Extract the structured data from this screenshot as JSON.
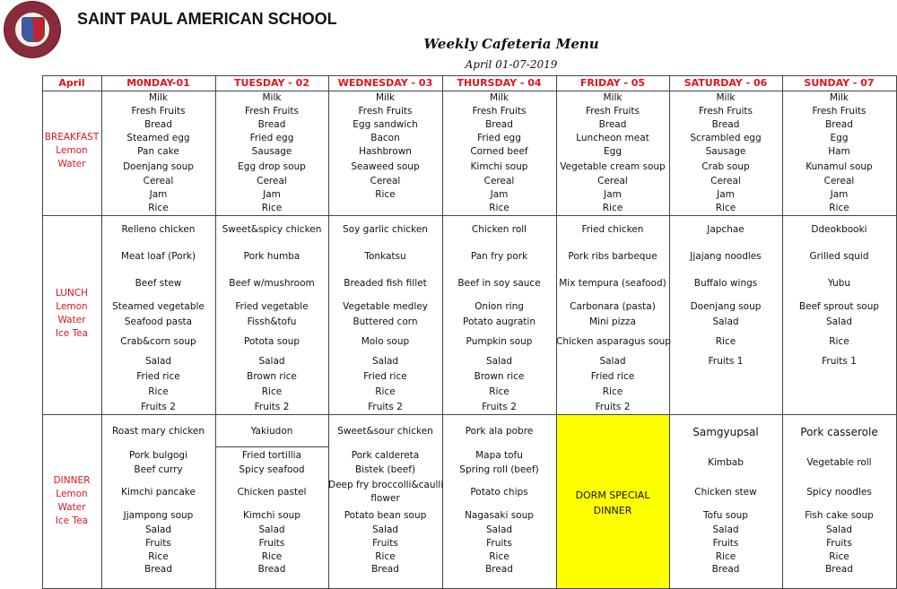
{
  "header": {
    "school_name": "SAINT PAUL AMERICAN SCHOOL",
    "logo_text": "SAINT PAUL AMERICAN SCHOOL",
    "menu_title": "Weekly Cafeteria Menu",
    "date_range": "April 01-07-2019"
  },
  "table": {
    "corner": "April",
    "days": [
      "M0NDAY-01",
      "TUESDAY - 02",
      "WEDNESDAY - 03",
      "THURSDAY - 04",
      "FRIDAY - 05",
      "SATURDAY - 06",
      "SUNDAY - 07"
    ],
    "colors": {
      "header_text": "#e0141e",
      "highlight": "#ffff00"
    },
    "meals": [
      {
        "label": [
          "BREAKFAST",
          "Lemon",
          "Water"
        ],
        "days": [
          [
            "Milk",
            "Fresh Fruits",
            "Bread",
            "Steamed egg",
            "Pan cake",
            "Doenjang soup",
            "Cereal",
            "Jam",
            "Rice"
          ],
          [
            "Milk",
            "Fresh Fruits",
            "Bread",
            "Fried egg",
            "Sausage",
            "Egg drop soup",
            "Cereal",
            "Jam",
            "Rice"
          ],
          [
            "Milk",
            "Fresh Fruits",
            "Egg sandwich",
            "Bacon",
            "Hashbrown",
            "Seaweed soup",
            "Cereal",
            "Rice"
          ],
          [
            "Milk",
            "Fresh Fruits",
            "Bread",
            "Fried egg",
            "Corned beef",
            "Kimchi soup",
            "Cereal",
            "Jam",
            "Rice"
          ],
          [
            "Milk",
            "Fresh Fruits",
            "Bread",
            "Luncheon meat",
            "Egg",
            "Vegetable cream soup",
            "Cereal",
            "Jam",
            "Rice"
          ],
          [
            "Milk",
            "Fresh Fruits",
            "Bread",
            "Scrambled egg",
            "Sausage",
            "Crab soup",
            "Cereal",
            "Jam",
            "Rice"
          ],
          [
            "Milk",
            "Fresh Fruits",
            "Bread",
            "Egg",
            "Ham",
            "Kunamul soup",
            "Cereal",
            "Jam",
            "Rice"
          ]
        ]
      },
      {
        "label": [
          "LUNCH",
          "Lemon",
          "Water",
          "Ice Tea"
        ],
        "days": [
          [
            "Relleno chicken",
            "Meat loaf (Pork)",
            "Beef stew",
            "Steamed vegetable",
            "Seafood pasta",
            "Crab&corn soup",
            "Salad",
            "Fried rice",
            "Rice",
            "Fruits 2"
          ],
          [
            "Sweet&spicy chicken",
            "Pork humba",
            "Beef w/mushroom",
            "Fried vegetable",
            "Fissh&tofu",
            "Potota soup",
            "Salad",
            "Brown rice",
            "Rice",
            "Fruits 2"
          ],
          [
            "Soy garlic chicken",
            "Tonkatsu",
            "Breaded fish fillet",
            "Vegetable medley",
            "Buttered corn",
            "Molo soup",
            "Salad",
            "Fried rice",
            "Rice",
            "Fruits 2"
          ],
          [
            "Chicken roll",
            "Pan fry pork",
            "Beef in soy sauce",
            "Onion ring",
            "Potato augratin",
            "Pumpkin soup",
            "Salad",
            "Brown rice",
            "Rice",
            "Fruits 2"
          ],
          [
            "Fried chicken",
            "Pork ribs barbeque",
            "Mix tempura (seafood)",
            "Carbonara (pasta)",
            "Mini pizza",
            "Chicken asparagus soup",
            "Salad",
            "Fried rice",
            "Rice",
            "Fruits 2"
          ],
          [
            "Japchae",
            "Jjajang noodles",
            "Buffalo wings",
            "Doenjang soup",
            "Salad",
            "Rice",
            "Fruits 1"
          ],
          [
            "Ddeokbooki",
            "Grilled squid",
            "Yubu",
            "Beef sprout soup",
            "Salad",
            "Rice",
            "Fruits 1"
          ]
        ]
      },
      {
        "label": [
          "DINNER",
          "Lemon",
          "Water",
          "Ice Tea"
        ],
        "days": [
          [
            "Roast mary chicken",
            "Pork bulgogi",
            "Beef curry",
            "Kimchi pancake",
            "Jjampong soup",
            "Salad",
            "Fruits",
            "Rice",
            "Bread"
          ],
          [
            "Yakiudon",
            "Fried tortillia",
            "Spicy seafood",
            "Chicken pastel",
            "Kimchi soup",
            "Salad",
            "Fruits",
            "Rice",
            "Bread"
          ],
          [
            "Sweet&sour chicken",
            "Pork caldereta",
            "Bistek (beef)",
            "Deep fry broccolli&caulli",
            "flower",
            "Potato bean soup",
            "Salad",
            "Fruits",
            "Rice",
            "Bread"
          ],
          [
            "Pork ala pobre",
            "Mapa tofu",
            "Spring roll (beef)",
            "Potato chips",
            "Nagasaki soup",
            "Salad",
            "Fruits",
            "Rice",
            "Bread"
          ],
          [],
          [
            "Samgyupsal",
            "Kimbab",
            "Chicken stew",
            "Tofu soup",
            "Salad",
            "Fruits",
            "Rice",
            "Bread"
          ],
          [
            "Pork casserole",
            "Vegetable roll",
            "Spicy noodles",
            "Fish cake soup",
            "Salad",
            "Fruits",
            "Rice",
            "Bread"
          ]
        ],
        "special": [
          "DORM SPECIAL",
          "DINNER"
        ]
      }
    ]
  }
}
